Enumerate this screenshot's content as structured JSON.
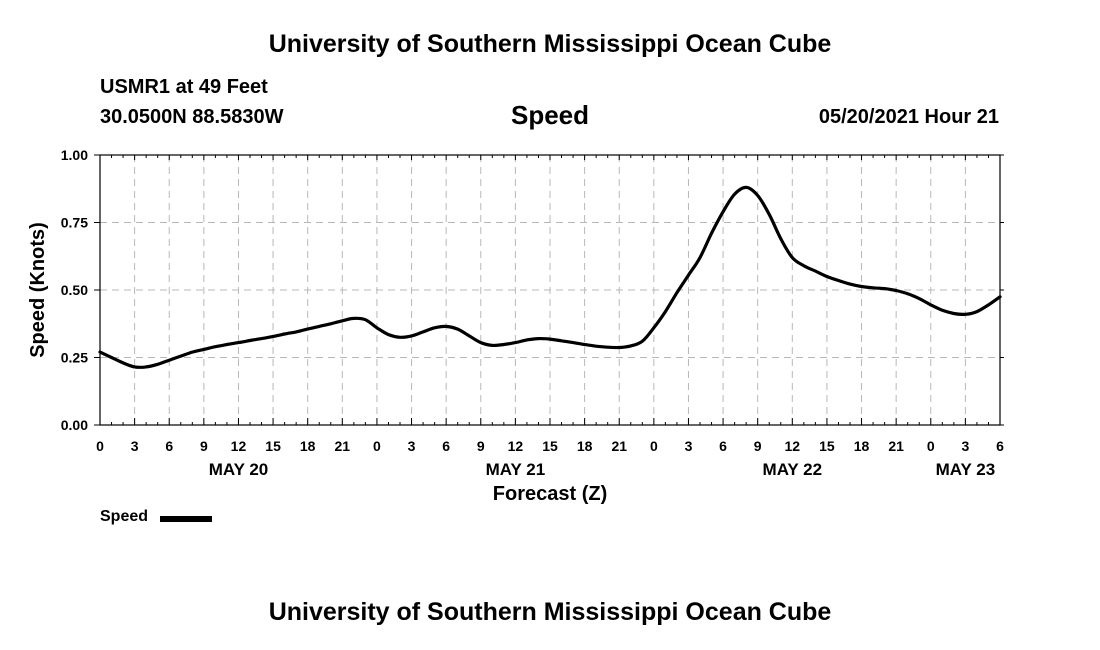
{
  "header": {
    "title": "University of Southern Mississippi Ocean Cube",
    "station": "USMR1 at 49 Feet",
    "coords": "30.0500N  88.5830W",
    "subtitle": "Speed",
    "datetime": "05/20/2021 Hour 21"
  },
  "footer": {
    "title": "University of Southern Mississippi Ocean Cube"
  },
  "legend": {
    "label": "Speed"
  },
  "chart_data": {
    "type": "line",
    "xlabel": "Forecast (Z)",
    "ylabel": "Speed (Knots)",
    "ylim": [
      0,
      1
    ],
    "xlim_hours": [
      0,
      78
    ],
    "y_ticks": [
      "0.00",
      "0.25",
      "0.50",
      "0.75",
      "1.00"
    ],
    "x_tick_labels": [
      "0",
      "3",
      "6",
      "9",
      "12",
      "15",
      "18",
      "21",
      "0",
      "3",
      "6",
      "9",
      "12",
      "15",
      "18",
      "21",
      "0",
      "3",
      "6",
      "9",
      "12",
      "15",
      "18",
      "21",
      "0",
      "3",
      "6"
    ],
    "day_labels": [
      {
        "label": "MAY 20",
        "hour": 12
      },
      {
        "label": "MAY 21",
        "hour": 36
      },
      {
        "label": "MAY 22",
        "hour": 60
      },
      {
        "label": "MAY 23",
        "hour": 75
      }
    ],
    "grid": true,
    "line_color": "#000000",
    "series": [
      {
        "name": "Speed",
        "x": [
          0,
          1,
          2,
          3,
          4,
          5,
          6,
          7,
          8,
          9,
          10,
          11,
          12,
          13,
          14,
          15,
          16,
          17,
          18,
          19,
          20,
          21,
          22,
          23,
          24,
          25,
          26,
          27,
          28,
          29,
          30,
          31,
          32,
          33,
          34,
          35,
          36,
          37,
          38,
          39,
          40,
          41,
          42,
          43,
          44,
          45,
          46,
          47,
          48,
          49,
          50,
          51,
          52,
          53,
          54,
          55,
          56,
          57,
          58,
          59,
          60,
          61,
          62,
          63,
          64,
          65,
          66,
          67,
          68,
          69,
          70,
          71,
          72,
          73,
          74,
          75,
          76,
          77,
          78
        ],
        "values": [
          0.27,
          0.25,
          0.23,
          0.215,
          0.215,
          0.225,
          0.24,
          0.255,
          0.27,
          0.28,
          0.29,
          0.298,
          0.305,
          0.313,
          0.32,
          0.328,
          0.337,
          0.345,
          0.355,
          0.365,
          0.375,
          0.386,
          0.395,
          0.39,
          0.36,
          0.335,
          0.325,
          0.33,
          0.345,
          0.36,
          0.365,
          0.355,
          0.33,
          0.305,
          0.295,
          0.298,
          0.305,
          0.315,
          0.32,
          0.318,
          0.312,
          0.305,
          0.298,
          0.292,
          0.288,
          0.287,
          0.293,
          0.31,
          0.36,
          0.42,
          0.49,
          0.555,
          0.62,
          0.71,
          0.79,
          0.855,
          0.88,
          0.85,
          0.78,
          0.69,
          0.62,
          0.59,
          0.57,
          0.55,
          0.535,
          0.522,
          0.513,
          0.508,
          0.505,
          0.498,
          0.486,
          0.468,
          0.445,
          0.425,
          0.413,
          0.41,
          0.42,
          0.445,
          0.475
        ]
      }
    ]
  }
}
